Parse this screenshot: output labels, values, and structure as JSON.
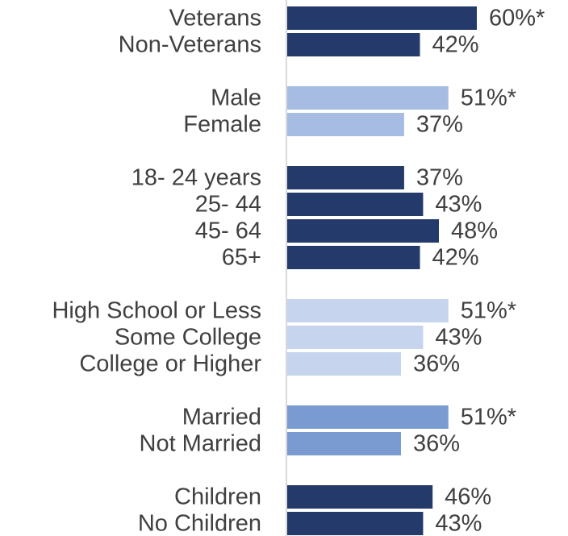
{
  "chart_data": {
    "type": "bar",
    "orientation": "horizontal",
    "xlim": [
      0,
      100
    ],
    "grid": false,
    "legend": "none",
    "groups": [
      {
        "color": "#233a6b",
        "items": [
          {
            "label": "Veterans",
            "value": 60,
            "display": "60%*"
          },
          {
            "label": "Non-Veterans",
            "value": 42,
            "display": "42%"
          }
        ]
      },
      {
        "color": "#a7bce3",
        "items": [
          {
            "label": "Male",
            "value": 51,
            "display": "51%*"
          },
          {
            "label": "Female",
            "value": 37,
            "display": "37%"
          }
        ]
      },
      {
        "color": "#233a6b",
        "items": [
          {
            "label": "18- 24 years",
            "value": 37,
            "display": "37%"
          },
          {
            "label": "25- 44",
            "value": 43,
            "display": "43%"
          },
          {
            "label": "45- 64",
            "value": 48,
            "display": "48%"
          },
          {
            "label": "65+",
            "value": 42,
            "display": "42%"
          }
        ]
      },
      {
        "color": "#c6d4ee",
        "items": [
          {
            "label": "High School or Less",
            "value": 51,
            "display": "51%*"
          },
          {
            "label": "Some College",
            "value": 43,
            "display": "43%"
          },
          {
            "label": "College or Higher",
            "value": 36,
            "display": "36%"
          }
        ]
      },
      {
        "color": "#7a9bd2",
        "items": [
          {
            "label": "Married",
            "value": 51,
            "display": "51%*"
          },
          {
            "label": "Not Married",
            "value": 36,
            "display": "36%"
          }
        ]
      },
      {
        "color": "#233a6b",
        "items": [
          {
            "label": "Children",
            "value": 46,
            "display": "46%"
          },
          {
            "label": "No Children",
            "value": 43,
            "display": "43%"
          }
        ]
      }
    ]
  }
}
